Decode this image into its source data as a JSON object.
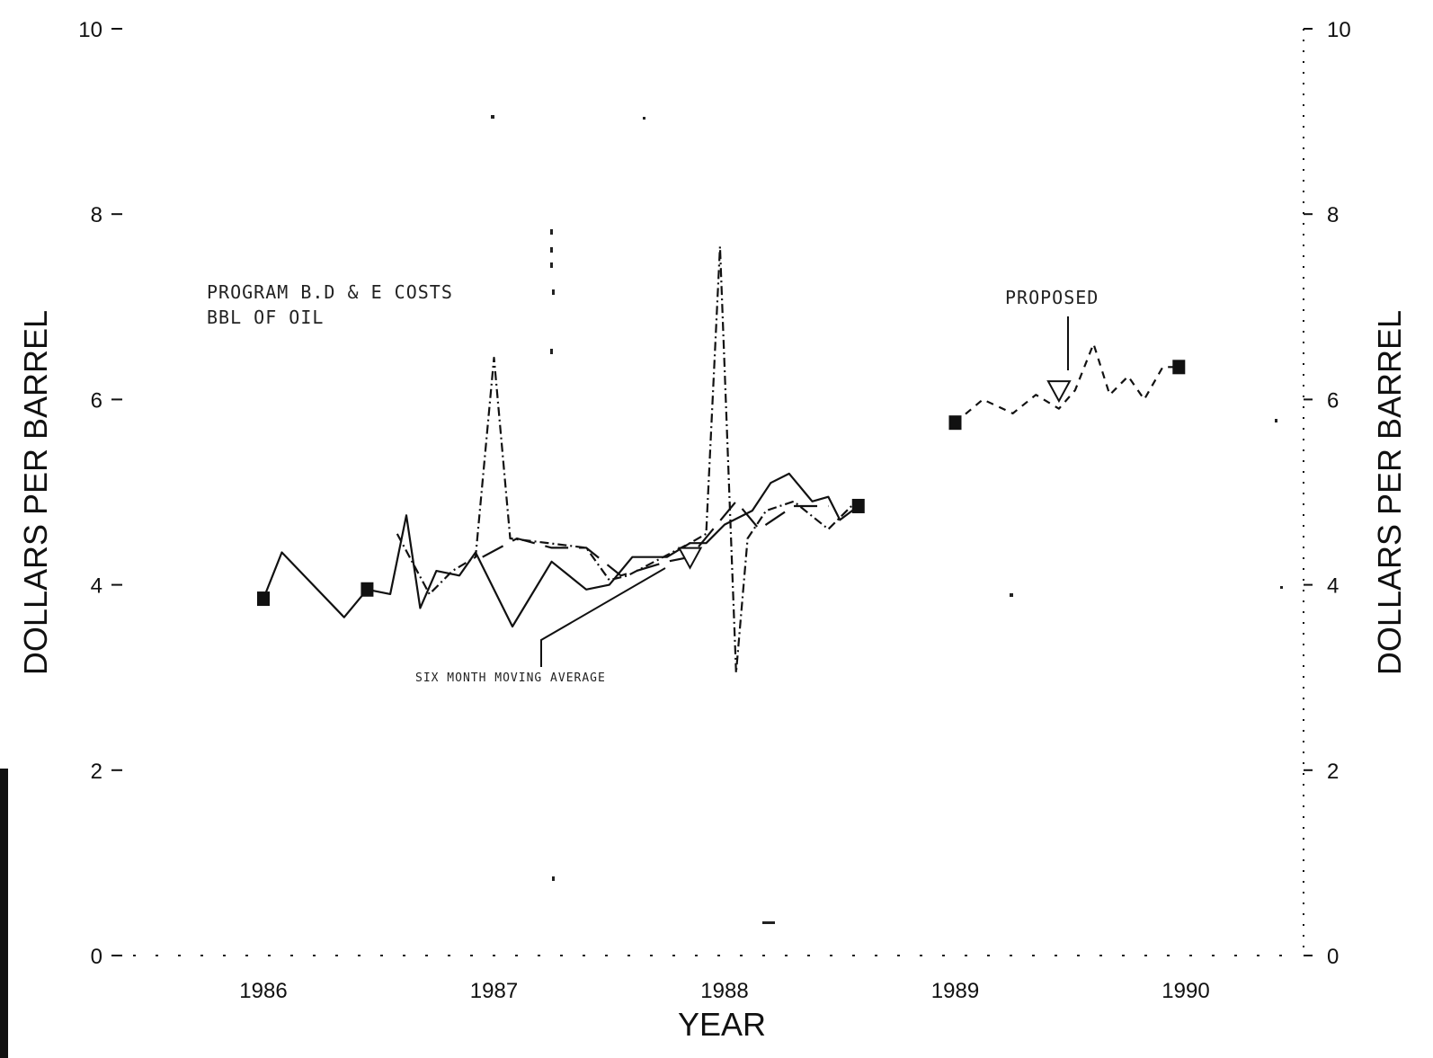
{
  "chart_data": {
    "type": "line",
    "xlabel": "YEAR",
    "ylabel_left": "DOLLARS PER BARREL",
    "ylabel_right": "DOLLARS PER BARREL",
    "x_ticks": [
      "1986",
      "1987",
      "1988",
      "1989",
      "1990"
    ],
    "ylim": [
      0,
      10
    ],
    "y_ticks_left": [
      "0",
      "2",
      "4",
      "6",
      "8",
      "10"
    ],
    "y_ticks_right": [
      "0",
      "2",
      "4",
      "6",
      "8",
      "10"
    ],
    "grid": false,
    "annotations": {
      "program_costs_line1": "PROGRAM B.D & E COSTS",
      "program_costs_line2": "BBL OF OIL",
      "moving_average": "SIX MONTH MOVING AVERAGE",
      "proposed": "PROPOSED"
    },
    "series": [
      {
        "style": "solid",
        "x": [
          1986.0,
          1986.08,
          1986.35,
          1986.45,
          1986.55,
          1986.62,
          1986.68,
          1986.75,
          1986.85,
          1986.92,
          1987.08,
          1987.25,
          1987.4,
          1987.5,
          1987.6,
          1987.75,
          1987.85,
          1987.92,
          1988.0,
          1988.12,
          1988.2,
          1988.28,
          1988.38,
          1988.45,
          1988.5,
          1988.58
        ],
        "y": [
          3.85,
          4.35,
          3.65,
          3.95,
          3.9,
          4.75,
          3.75,
          4.15,
          4.1,
          4.35,
          3.55,
          4.25,
          3.95,
          4.0,
          4.3,
          4.3,
          4.45,
          4.45,
          4.65,
          4.8,
          5.1,
          5.2,
          4.9,
          4.95,
          4.7,
          4.85
        ]
      },
      {
        "style": "dash-dot",
        "x": [
          1986.58,
          1986.72,
          1986.82,
          1986.92,
          1987.0,
          1987.07,
          1987.4,
          1987.5,
          1987.58,
          1987.85,
          1987.92,
          1987.98,
          1988.05,
          1988.1,
          1988.18,
          1988.3,
          1988.45,
          1988.55
        ],
        "y": [
          4.55,
          3.9,
          4.15,
          4.3,
          6.45,
          4.5,
          4.4,
          4.05,
          4.1,
          4.45,
          4.55,
          7.65,
          3.05,
          4.5,
          4.8,
          4.9,
          4.6,
          4.85
        ]
      },
      {
        "style": "long-dash",
        "name": "SIX MONTH MOVING AVERAGE",
        "x": [
          1986.95,
          1987.1,
          1987.25,
          1987.4,
          1987.55,
          1987.75,
          1987.85,
          1987.95,
          1988.05,
          1988.15,
          1988.3,
          1988.45
        ],
        "y": [
          4.3,
          4.5,
          4.4,
          4.4,
          4.1,
          4.25,
          4.3,
          4.6,
          4.9,
          4.6,
          4.85,
          4.85
        ]
      },
      {
        "style": "dashed",
        "name": "PROPOSED",
        "x": [
          1989.0,
          1989.12,
          1989.25,
          1989.35,
          1989.45,
          1989.52,
          1989.6,
          1989.67,
          1989.75,
          1989.82,
          1989.9,
          1989.97
        ],
        "y": [
          5.75,
          6.0,
          5.85,
          6.05,
          5.9,
          6.1,
          6.6,
          6.05,
          6.25,
          6.0,
          6.35,
          6.35
        ]
      }
    ],
    "markers": [
      {
        "shape": "square",
        "x": 1986.0,
        "y": 3.85
      },
      {
        "shape": "square",
        "x": 1986.45,
        "y": 3.95
      },
      {
        "shape": "square",
        "x": 1988.58,
        "y": 4.85
      },
      {
        "shape": "square",
        "x": 1989.0,
        "y": 5.75
      },
      {
        "shape": "square",
        "x": 1989.97,
        "y": 6.35
      },
      {
        "shape": "triangle",
        "x": 1987.85,
        "y": 4.3
      },
      {
        "shape": "triangle",
        "x": 1989.45,
        "y": 6.1
      }
    ],
    "colors": {
      "ink": "#111111",
      "background": "#ffffff"
    }
  }
}
